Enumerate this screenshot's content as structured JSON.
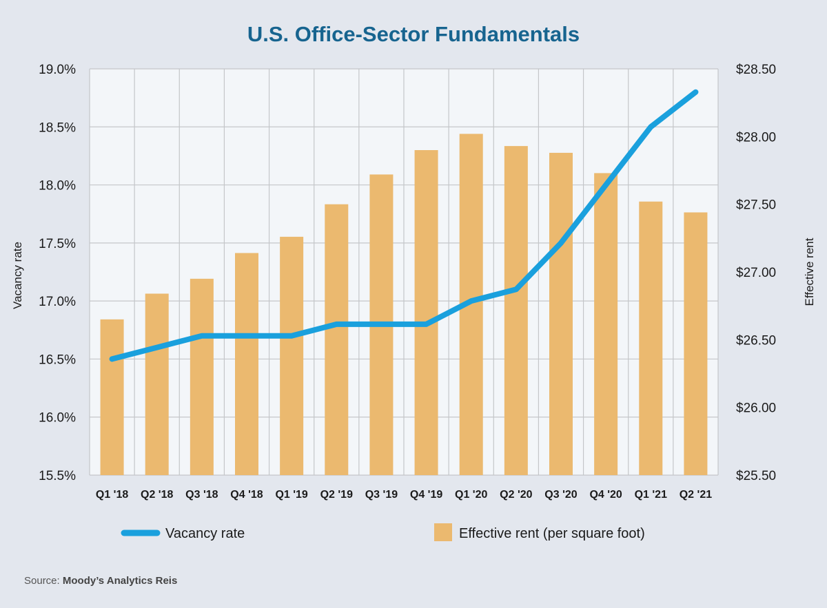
{
  "colors": {
    "background": "#e3e7ee",
    "plot_background": "#f3f6f9",
    "title": "#17648f",
    "bar": "#ebb96f",
    "line": "#1aa0dd",
    "grid": "#c4c6c9"
  },
  "chart_data": {
    "type": "bar+line",
    "title": "U.S. Office-Sector Fundamentals",
    "categories": [
      "Q1 '18",
      "Q2 '18",
      "Q3 '18",
      "Q4 '18",
      "Q1 '19",
      "Q2 '19",
      "Q3 '19",
      "Q4 '19",
      "Q1 '20",
      "Q2 '20",
      "Q3 '20",
      "Q4 '20",
      "Q1 '21",
      "Q2 '21"
    ],
    "series": [
      {
        "name": "Effective rent (per square foot)",
        "type": "bar",
        "axis": "right",
        "values": [
          26.65,
          26.84,
          26.95,
          27.14,
          27.26,
          27.5,
          27.72,
          27.9,
          28.02,
          27.93,
          27.88,
          27.73,
          27.52,
          27.44
        ]
      },
      {
        "name": "Vacancy rate",
        "type": "line",
        "axis": "left",
        "values": [
          16.5,
          16.6,
          16.7,
          16.7,
          16.7,
          16.8,
          16.8,
          16.8,
          17.0,
          17.1,
          17.5,
          18.0,
          18.5,
          18.8
        ]
      }
    ],
    "ylabel": "Vacancy rate",
    "ylabel_right": "Effective rent",
    "ylim": [
      15.5,
      19.0
    ],
    "ylim_right": [
      25.5,
      28.5
    ],
    "yticks": [
      "15.5%",
      "16.0%",
      "16.5%",
      "17.0%",
      "17.5%",
      "18.0%",
      "18.5%",
      "19.0%"
    ],
    "yticks_right": [
      "$25.50",
      "$26.00",
      "$26.50",
      "$27.00",
      "$27.50",
      "$28.00",
      "$28.50"
    ],
    "grid": true,
    "legend_position": "bottom"
  },
  "source": {
    "prefix": "Source: ",
    "name": "Moody’s Analytics Reis"
  }
}
